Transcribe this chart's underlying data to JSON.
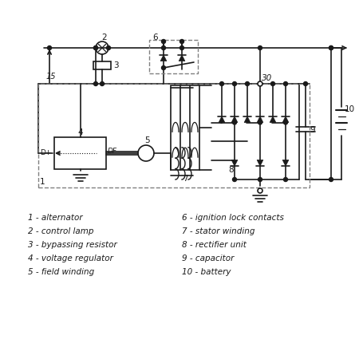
{
  "legend_left": [
    "1 - alternator",
    "2 - control lamp",
    "3 - bypassing resistor",
    "4 - voltage regulator",
    "5 - field winding"
  ],
  "legend_right": [
    "6 - ignition lock contacts",
    "7 - stator winding",
    "8 - rectifier unit",
    "9 - capacitor",
    "10 - battery"
  ],
  "line_color": "#1a1a1a",
  "bg_color": "#ffffff",
  "font_size": 7.5
}
